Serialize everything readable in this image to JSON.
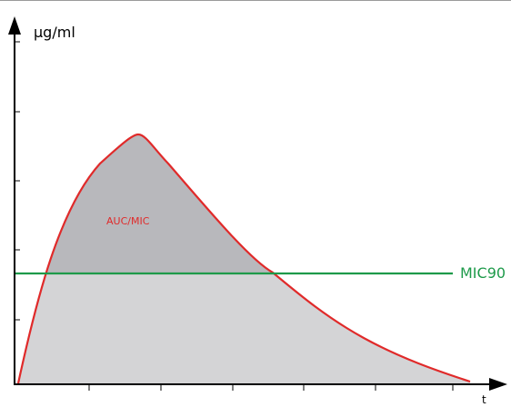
{
  "diagram": {
    "y_axis_label": "µg/ml",
    "x_axis_label": "t",
    "auc_label": "AUC/MIC",
    "mic_label": "MIC90",
    "colors": {
      "curve": "#e02a2a",
      "mic_line": "#1e9a4a",
      "auc_fill": "#b8b8bc",
      "area_fill": "#d4d4d6",
      "axis": "#000000",
      "auc_text": "#e02a2a"
    }
  }
}
